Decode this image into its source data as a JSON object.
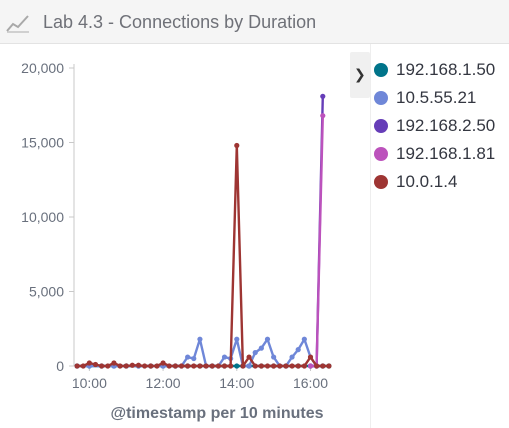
{
  "panel": {
    "title": "Lab 4.3 - Connections by Duration",
    "icon": "line-chart-icon",
    "legend_toggle_icon": "chevron-right-icon"
  },
  "legend": [
    {
      "label": "192.168.1.50",
      "color": "#00748a"
    },
    {
      "label": "10.5.55.21",
      "color": "#6f87d8"
    },
    {
      "label": "192.168.2.50",
      "color": "#663db8"
    },
    {
      "label": "192.168.1.81",
      "color": "#bc52bc"
    },
    {
      "label": "10.0.1.4",
      "color": "#9e3533"
    }
  ],
  "chart_data": {
    "type": "line",
    "xlabel": "@timestamp per 10 minutes",
    "ylabel": "",
    "ylim": [
      0,
      20000
    ],
    "yticks": [
      "0",
      "5,000",
      "10,000",
      "15,000",
      "20,000"
    ],
    "xticks": [
      "10:00",
      "12:00",
      "14:00",
      "16:00"
    ],
    "xlim_minutes": [
      575,
      995
    ],
    "xtick_minutes": [
      600,
      720,
      840,
      960
    ],
    "series": [
      {
        "name": "192.168.1.50",
        "color": "#00748a",
        "x": [
          580,
          600,
          620,
          640,
          660,
          680,
          700,
          720,
          740,
          760,
          780,
          800,
          820,
          840,
          860,
          880,
          900,
          920,
          940,
          960,
          980,
          990
        ],
        "y": [
          0,
          0,
          0,
          0,
          0,
          0,
          0,
          0,
          0,
          0,
          0,
          0,
          0,
          0,
          0,
          0,
          0,
          0,
          0,
          0,
          0,
          0
        ]
      },
      {
        "name": "10.5.55.21",
        "color": "#6f87d8",
        "x": [
          580,
          600,
          620,
          640,
          660,
          680,
          700,
          720,
          740,
          750,
          760,
          770,
          780,
          790,
          800,
          810,
          820,
          830,
          840,
          850,
          860,
          870,
          880,
          890,
          900,
          910,
          920,
          930,
          940,
          950,
          960,
          970,
          980
        ],
        "y": [
          0,
          0,
          0,
          0,
          0,
          0,
          0,
          0,
          0,
          0,
          600,
          500,
          1800,
          0,
          0,
          0,
          600,
          500,
          1800,
          0,
          0,
          900,
          1200,
          1800,
          600,
          0,
          0,
          600,
          1100,
          1800,
          600,
          0,
          0
        ]
      },
      {
        "name": "192.168.2.50",
        "color": "#663db8",
        "x": [
          960,
          970,
          980
        ],
        "y": [
          0,
          0,
          18100
        ]
      },
      {
        "name": "192.168.1.81",
        "color": "#bc52bc",
        "x": [
          960,
          970,
          980
        ],
        "y": [
          0,
          0,
          16800
        ]
      },
      {
        "name": "10.0.1.4",
        "color": "#9e3533",
        "x": [
          580,
          590,
          600,
          610,
          620,
          630,
          640,
          650,
          660,
          670,
          680,
          690,
          700,
          710,
          720,
          730,
          740,
          750,
          760,
          770,
          780,
          790,
          800,
          810,
          820,
          830,
          840,
          850,
          860,
          870,
          880,
          890,
          900,
          910,
          920,
          930,
          940,
          950,
          960,
          970,
          980,
          990
        ],
        "y": [
          0,
          0,
          200,
          100,
          0,
          0,
          200,
          0,
          0,
          50,
          50,
          0,
          0,
          0,
          200,
          0,
          0,
          0,
          0,
          0,
          0,
          0,
          0,
          0,
          0,
          0,
          14800,
          0,
          600,
          0,
          0,
          0,
          0,
          0,
          0,
          0,
          0,
          0,
          600,
          0,
          0,
          0
        ]
      }
    ]
  }
}
